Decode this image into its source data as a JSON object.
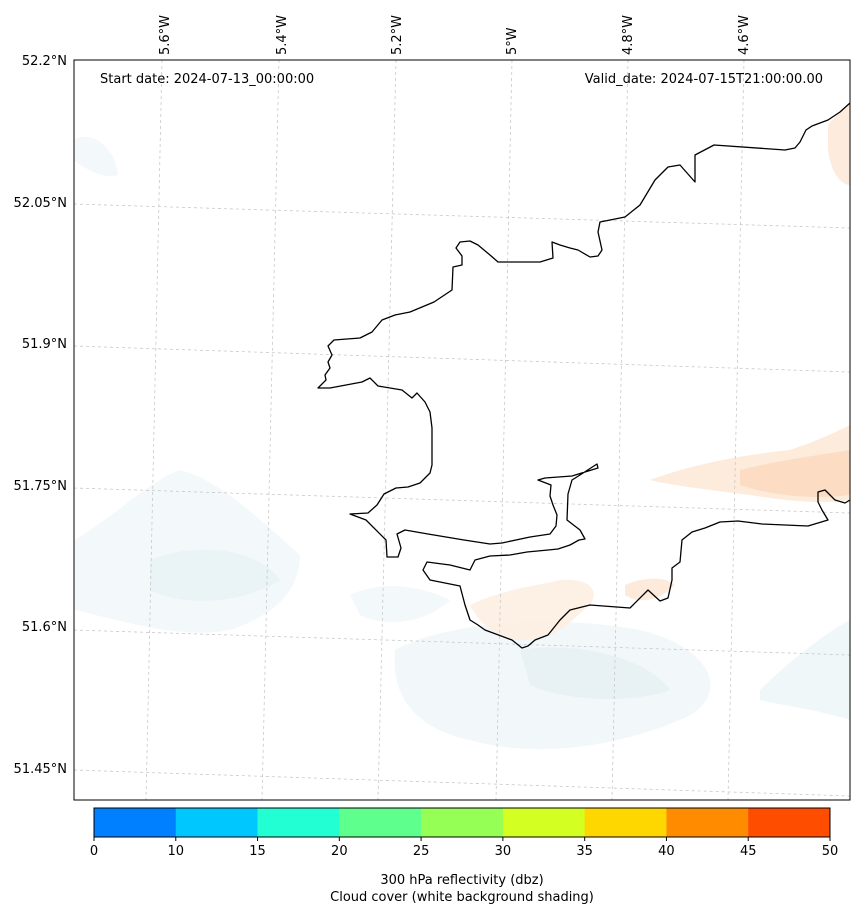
{
  "map": {
    "start_label": "Start date: 2024-07-13_00:00:00",
    "valid_label": "Valid_date: 2024-07-15T21:00:00.00",
    "lon_labels": [
      "5.6°W",
      "5.4°W",
      "5.2°W",
      "5°W",
      "4.8°W",
      "4.6°W"
    ],
    "lat_labels": [
      "52.2°N",
      "52.05°N",
      "51.9°N",
      "51.75°N",
      "51.6°N",
      "51.45°N"
    ]
  },
  "colorbar": {
    "ticks": [
      "0",
      "10",
      "15",
      "20",
      "25",
      "30",
      "35",
      "40",
      "45",
      "50"
    ],
    "colors": [
      "#0080ff",
      "#00c8ff",
      "#22ffd3",
      "#5fff8e",
      "#96ff56",
      "#d3ff22",
      "#ffd700",
      "#ff8c00",
      "#ff4d00"
    ],
    "label_line1": "300 hPa reflectivity (dbz)",
    "label_line2": "Cloud cover (white background shading)"
  }
}
